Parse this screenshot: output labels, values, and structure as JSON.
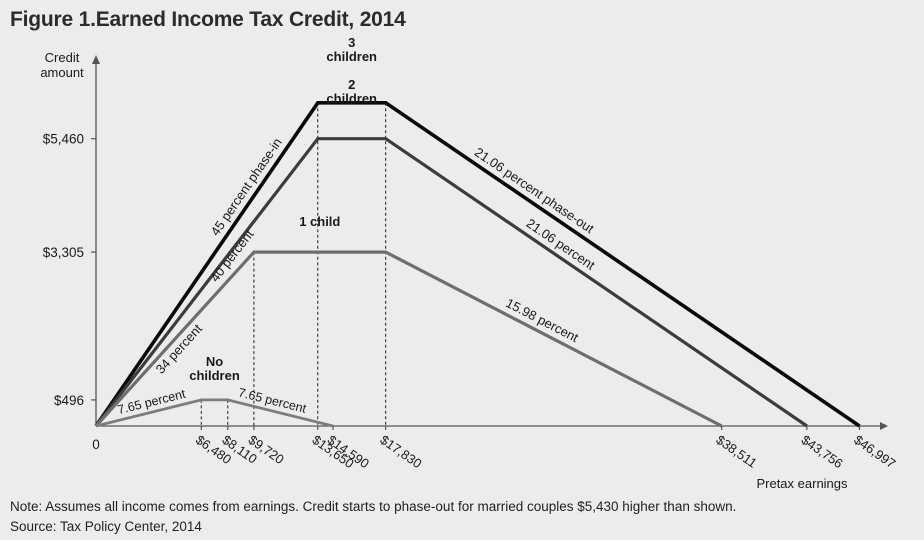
{
  "title": "Figure 1.Earned Income Tax Credit, 2014",
  "note": "Note: Assumes all income comes from earnings. Credit starts to phase-out for married couples $5,430 higher than shown.",
  "source": "Source: Tax Policy Center, 2014",
  "chart_data": {
    "type": "line",
    "ylabel": "Credit amount",
    "xlabel": "Pretax earnings",
    "y_ticks": [
      {
        "value": 496,
        "label": "$496"
      },
      {
        "value": 3305,
        "label": "$3,305"
      },
      {
        "value": 5460,
        "label": "$5,460"
      }
    ],
    "x_ticks": [
      {
        "value": 0,
        "label": "0"
      },
      {
        "value": 6480,
        "label": "$6,480"
      },
      {
        "value": 8110,
        "label": "$8,110"
      },
      {
        "value": 9720,
        "label": "$9,720"
      },
      {
        "value": 13650,
        "label": "$13,650"
      },
      {
        "value": 14590,
        "label": "$14,590"
      },
      {
        "value": 17830,
        "label": "$17,830"
      },
      {
        "value": 38511,
        "label": "$38,511"
      },
      {
        "value": 43756,
        "label": "$43,756"
      },
      {
        "value": 46997,
        "label": "$46,997"
      }
    ],
    "xlim": [
      0,
      47500
    ],
    "ylim": [
      0,
      6800
    ],
    "series": [
      {
        "name": "3 children",
        "color": "#0a0a0a",
        "points": [
          [
            0,
            0
          ],
          [
            13650,
            6143
          ],
          [
            17830,
            6143
          ],
          [
            46997,
            0
          ]
        ],
        "drop_lines_at": [
          13650,
          17830
        ],
        "labels": [
          "3",
          "children"
        ],
        "phase_in_label": "45 percent phase-in",
        "phase_out_label": "21.06 percent phase-out"
      },
      {
        "name": "2 children",
        "color": "#3c3c3c",
        "points": [
          [
            0,
            0
          ],
          [
            13650,
            5460
          ],
          [
            17830,
            5460
          ],
          [
            43756,
            0
          ]
        ],
        "labels": [
          "2",
          "children"
        ],
        "phase_in_label": "40 percent",
        "phase_out_label": "21.06 percent"
      },
      {
        "name": "1 child",
        "color": "#6e6e6e",
        "points": [
          [
            0,
            0
          ],
          [
            9720,
            3305
          ],
          [
            17830,
            3305
          ],
          [
            38511,
            0
          ]
        ],
        "drop_lines_at": [
          9720
        ],
        "labels": [
          "1 child"
        ],
        "phase_in_label": "34 percent",
        "phase_out_label": "15.98 percent"
      },
      {
        "name": "No children",
        "color": "#7d7d7d",
        "points": [
          [
            0,
            0
          ],
          [
            6480,
            496
          ],
          [
            8110,
            496
          ],
          [
            14590,
            0
          ]
        ],
        "drop_lines_at": [
          6480,
          8110
        ],
        "labels": [
          "No",
          "children"
        ],
        "phase_in_label": "7.65 percent",
        "phase_out_label": "7.65 percent"
      }
    ]
  }
}
